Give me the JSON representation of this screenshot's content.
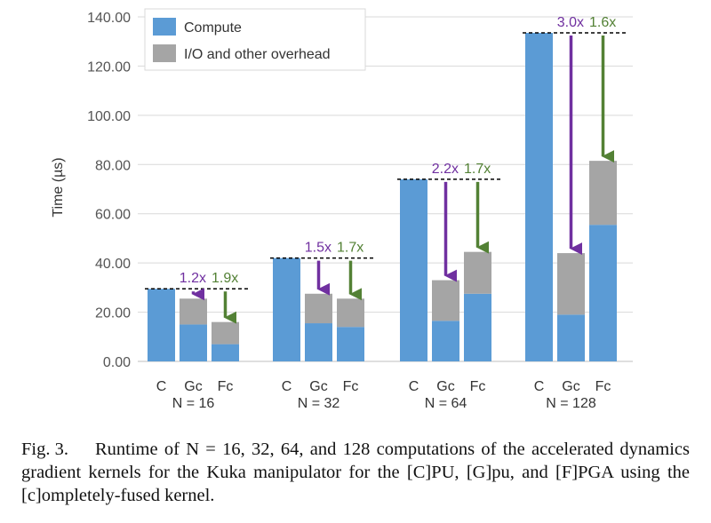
{
  "chart_data": {
    "type": "bar",
    "stacked": true,
    "ylabel": "Time (µs)",
    "ylim": [
      0,
      140
    ],
    "yticks": [
      "0.00",
      "20.00",
      "40.00",
      "60.00",
      "80.00",
      "100.00",
      "120.00",
      "140.00"
    ],
    "ytick_values": [
      0,
      20,
      40,
      60,
      80,
      100,
      120,
      140
    ],
    "grid": true,
    "legend_position": "top-left",
    "colors": {
      "compute": "#5b9bd5",
      "overhead": "#a5a5a5",
      "gpu_arrow": "#7030a0",
      "fpga_arrow": "#538135",
      "gridline": "#d9d9d9",
      "axis": "#bfbfbf"
    },
    "series": [
      {
        "name": "Compute"
      },
      {
        "name": "I/O and other overhead"
      }
    ],
    "groups": [
      {
        "label": "N = 16",
        "bar_labels": [
          "C",
          "Gc",
          "Fc"
        ],
        "compute": [
          29.5,
          15,
          7
        ],
        "overhead": [
          0,
          10.5,
          9
        ],
        "speedup_gpu": "1.2x",
        "speedup_fpga": "1.9x"
      },
      {
        "label": "N = 32",
        "bar_labels": [
          "C",
          "Gc",
          "Fc"
        ],
        "compute": [
          42,
          15.5,
          14
        ],
        "overhead": [
          0,
          12,
          11.5
        ],
        "speedup_gpu": "1.5x",
        "speedup_fpga": "1.7x"
      },
      {
        "label": "N = 64",
        "bar_labels": [
          "C",
          "Gc",
          "Fc"
        ],
        "compute": [
          74,
          16.5,
          27.5
        ],
        "overhead": [
          0,
          16.5,
          17
        ],
        "speedup_gpu": "2.2x",
        "speedup_fpga": "1.7x"
      },
      {
        "label": "N = 128",
        "bar_labels": [
          "C",
          "Gc",
          "Fc"
        ],
        "compute": [
          133.5,
          19,
          55.5
        ],
        "overhead": [
          0,
          25,
          26
        ],
        "speedup_gpu": "3.0x",
        "speedup_fpga": "1.6x"
      }
    ]
  },
  "caption": {
    "prefix": "Fig. 3.",
    "text": "Runtime of N = 16, 32, 64, and 128 computations of the accelerated dynamics gradient kernels for the Kuka manipulator for the [C]PU, [G]pu, and [F]PGA using the [c]ompletely-fused kernel."
  }
}
